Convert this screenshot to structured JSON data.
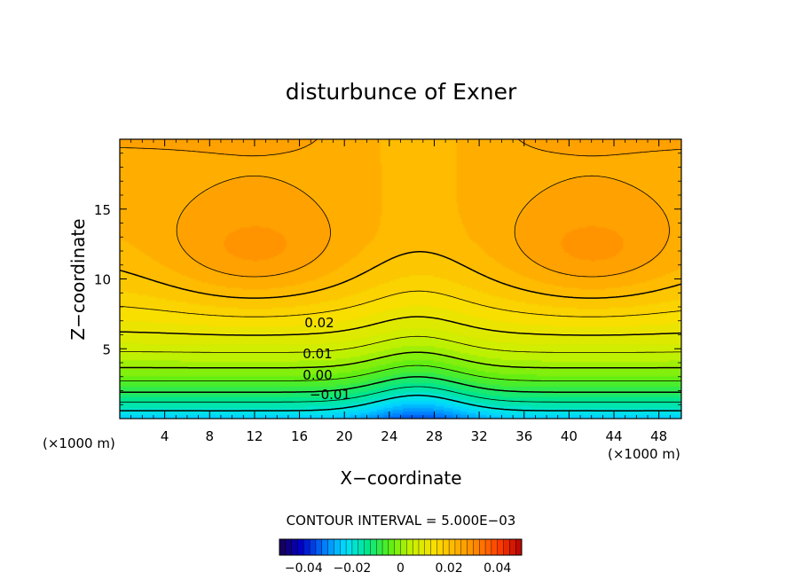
{
  "chart_data": {
    "type": "heatmap",
    "title": "disturbunce of Exner",
    "xlabel": "X−coordinate",
    "ylabel": "Z−coordinate",
    "x_unit_left": "(×1000 m)",
    "x_unit_right": "(×1000 m)",
    "xlim": [
      0,
      50
    ],
    "ylim": [
      0,
      20
    ],
    "x_ticks": [
      "4",
      "8",
      "12",
      "16",
      "20",
      "24",
      "28",
      "32",
      "36",
      "40",
      "44",
      "48"
    ],
    "y_ticks": [
      "5",
      "10",
      "15"
    ],
    "contour_labels": [
      "0.02",
      "0.01",
      "0.00",
      "−0.01"
    ],
    "contour_interval_text": "CONTOUR INTERVAL = 5.000E−03",
    "colorbar": {
      "range": [
        -0.05,
        0.05
      ],
      "ticks": [
        "−0.04",
        "−0.02",
        "0",
        "0.02",
        "0.04"
      ],
      "palette": [
        "#1a0050",
        "#0000c8",
        "#0078ff",
        "#00e0ff",
        "#00e68c",
        "#5aee14",
        "#c8f000",
        "#f8e000",
        "#ffb400",
        "#ff8200",
        "#ff3c00",
        "#b40000"
      ]
    },
    "field": {
      "description_free": true,
      "max_value_approx": 0.032,
      "max_centers": [
        [
          12,
          11.5
        ],
        [
          42,
          11.5
        ]
      ],
      "min_value_approx": -0.025,
      "min_center": [
        27,
        0
      ]
    }
  }
}
